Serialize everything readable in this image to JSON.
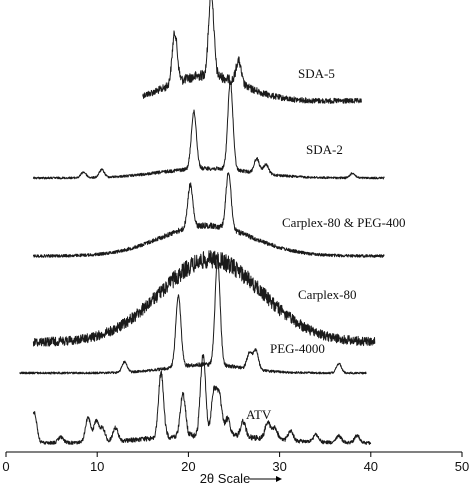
{
  "chart_data": {
    "type": "line",
    "xlabel": "2θ Scale",
    "xlim": [
      0,
      50
    ],
    "x_ticks": [
      0,
      10,
      20,
      30,
      40,
      50
    ],
    "grid": false,
    "legend": "labels placed beside each trace",
    "series": [
      {
        "name": "SDA-5",
        "x_range": [
          15,
          39
        ],
        "peaks": [
          {
            "x": 18.5,
            "height": 55
          },
          {
            "x": 22.5,
            "height": 92
          },
          {
            "x": 25.5,
            "height": 25
          }
        ],
        "halo": {
          "center": 22,
          "width": 4,
          "height": 28
        }
      },
      {
        "name": "SDA-2",
        "x_range": [
          3,
          41.5
        ],
        "peaks": [
          {
            "x": 8.5,
            "height": 6
          },
          {
            "x": 10.5,
            "height": 8
          },
          {
            "x": 20.6,
            "height": 60
          },
          {
            "x": 24.6,
            "height": 92
          },
          {
            "x": 27.5,
            "height": 15
          },
          {
            "x": 28.5,
            "height": 10
          },
          {
            "x": 38,
            "height": 5
          }
        ],
        "halo": {
          "center": 22,
          "width": 5,
          "height": 10
        }
      },
      {
        "name": "Carplex-80 & PEG-400",
        "x_range": [
          3,
          41.5
        ],
        "peaks": [
          {
            "x": 20.2,
            "height": 45
          },
          {
            "x": 24.4,
            "height": 60
          }
        ],
        "halo": {
          "center": 22,
          "width": 5,
          "height": 32
        }
      },
      {
        "name": "Carplex-80",
        "x_range": [
          3,
          40.5
        ],
        "peaks": [],
        "halo": {
          "center": 22.5,
          "width": 5.5,
          "height": 110
        }
      },
      {
        "name": "PEG-4000",
        "x_range": [
          1.5,
          39.5
        ],
        "peaks": [
          {
            "x": 13,
            "height": 10
          },
          {
            "x": 18.9,
            "height": 68
          },
          {
            "x": 23.2,
            "height": 100
          },
          {
            "x": 26.7,
            "height": 15
          },
          {
            "x": 27.4,
            "height": 18
          },
          {
            "x": 36.5,
            "height": 9
          }
        ],
        "halo": {
          "center": 22,
          "width": 4,
          "height": 8
        }
      },
      {
        "name": "ATV",
        "x_range": [
          3,
          40
        ],
        "peaks": [
          {
            "x": 3.1,
            "height": 32
          },
          {
            "x": 6.0,
            "height": 6
          },
          {
            "x": 9.0,
            "height": 26
          },
          {
            "x": 9.9,
            "height": 22
          },
          {
            "x": 10.6,
            "height": 14
          },
          {
            "x": 12.0,
            "height": 14
          },
          {
            "x": 17.0,
            "height": 68
          },
          {
            "x": 19.4,
            "height": 45
          },
          {
            "x": 21.6,
            "height": 85
          },
          {
            "x": 22.8,
            "height": 45
          },
          {
            "x": 23.4,
            "height": 40
          },
          {
            "x": 24.3,
            "height": 18
          },
          {
            "x": 26.0,
            "height": 16
          },
          {
            "x": 28.7,
            "height": 18
          },
          {
            "x": 29.5,
            "height": 12
          },
          {
            "x": 31.2,
            "height": 10
          },
          {
            "x": 34.0,
            "height": 8
          },
          {
            "x": 36.5,
            "height": 7
          },
          {
            "x": 38.5,
            "height": 8
          }
        ],
        "halo": {
          "center": 22,
          "width": 6,
          "height": 8
        }
      }
    ]
  }
}
